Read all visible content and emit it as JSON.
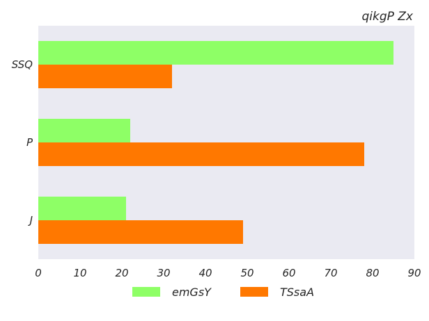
{
  "chart_data": {
    "type": "bar",
    "orientation": "horizontal",
    "title": "qikgP Zx",
    "xlabel": "",
    "ylabel": "",
    "categories": [
      "SSQ",
      "P",
      "J"
    ],
    "series": [
      {
        "name": "emGsY",
        "values": [
          85,
          22,
          21
        ],
        "color": "#8eff66"
      },
      {
        "name": "TSsaA",
        "values": [
          32,
          78,
          49
        ],
        "color": "#ff7800"
      }
    ],
    "xlim": [
      0,
      90
    ],
    "xticks": [
      0,
      10,
      20,
      30,
      40,
      50,
      60,
      70,
      80,
      90
    ],
    "grid": false,
    "legend_position": "bottom-center",
    "background": "#eaeaf2"
  }
}
